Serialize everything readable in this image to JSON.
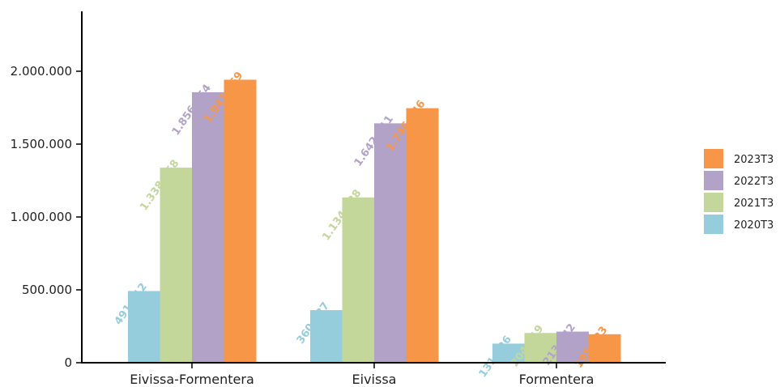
{
  "chart_data": {
    "type": "bar",
    "categories": [
      "Eivissa-Formentera",
      "Eivissa",
      "Formentera"
    ],
    "series": [
      {
        "name": "2020T3",
        "color": "#96cddc",
        "values": [
          491812,
          360787,
          131026
        ],
        "labels": [
          "491.812",
          "360.787",
          "131.026"
        ]
      },
      {
        "name": "2021T3",
        "color": "#c4d79b",
        "values": [
          1338358,
          1134138,
          204219
        ],
        "labels": [
          "1.338.358",
          "1.134.138",
          "204.219"
        ]
      },
      {
        "name": "2022T3",
        "color": "#b3a2c7",
        "values": [
          1856054,
          1642611,
          213442
        ],
        "labels": [
          "1.856.054",
          "1.642.611",
          "213.442"
        ]
      },
      {
        "name": "2023T3",
        "color": "#f79646",
        "values": [
          1941869,
          1746446,
          195423
        ],
        "labels": [
          "1.941.869",
          "1.746.446",
          "195.423"
        ]
      }
    ],
    "yticks": [
      {
        "value": 0,
        "label": "0"
      },
      {
        "value": 500000,
        "label": "500.000"
      },
      {
        "value": 1000000,
        "label": "1.000.000"
      },
      {
        "value": 1500000,
        "label": "1.500.000"
      },
      {
        "value": 2000000,
        "label": "2.000.000"
      }
    ],
    "ylim": [
      0,
      2400000
    ],
    "title": "",
    "xlabel": "",
    "ylabel": "",
    "grid": false,
    "legend_position": "right",
    "legend_order": [
      "2023T3",
      "2022T3",
      "2021T3",
      "2020T3"
    ]
  }
}
